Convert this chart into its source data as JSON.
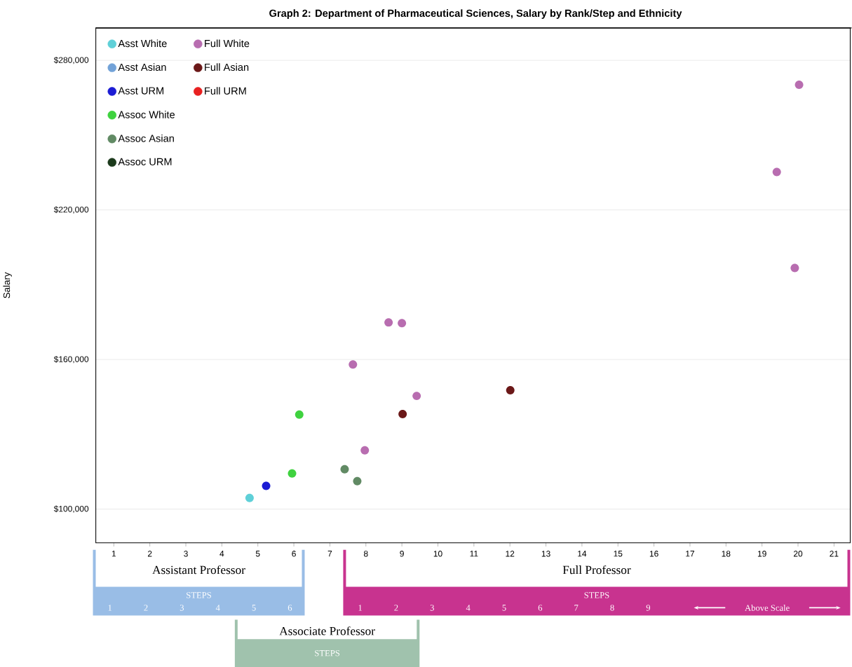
{
  "chart_data": {
    "type": "scatter",
    "title": "Graph 2: Department of Pharmaceutical Sciences, Salary by Rank/Step and Ethnicity",
    "ylabel": "Salary",
    "xlim": [
      0.5,
      21.45
    ],
    "ylim": [
      86500,
      293000
    ],
    "xticks": [
      1,
      2,
      3,
      4,
      5,
      6,
      7,
      8,
      9,
      10,
      11,
      12,
      13,
      14,
      15,
      16,
      17,
      18,
      19,
      20,
      21
    ],
    "yticks": [
      {
        "value": 100000,
        "label": "$100,000"
      },
      {
        "value": 160000,
        "label": "$160,000"
      },
      {
        "value": 220000,
        "label": "$220,000"
      },
      {
        "value": 280000,
        "label": "$280,000"
      }
    ],
    "grid": "y",
    "legend": "top left",
    "marker": "circle",
    "series": [
      {
        "name": "Asst White",
        "color": "#5fd0d8",
        "x": [
          4.77
        ],
        "values": [
          104500
        ]
      },
      {
        "name": "Asst Asian",
        "color": "#72a2d8"
      },
      {
        "name": "Asst URM",
        "color": "#1c1cd4",
        "x": [
          5.23
        ],
        "values": [
          109300
        ]
      },
      {
        "name": "Assoc White",
        "color": "#3fd23f",
        "x": [
          6.15,
          5.95
        ],
        "values": [
          137900,
          114300
        ]
      },
      {
        "name": "Assoc Asian",
        "color": "#618a64",
        "x": [
          7.41,
          7.76
        ],
        "values": [
          116000,
          111200
        ]
      },
      {
        "name": "Assoc URM",
        "color": "#1c3a1c"
      },
      {
        "name": "Full White",
        "color": "#b86db0",
        "x": [
          20.03,
          19.41,
          19.91,
          8.63,
          9.0,
          7.64,
          9.41,
          7.97
        ],
        "values": [
          270200,
          235200,
          196700,
          174900,
          174600,
          158000,
          145400,
          123600
        ]
      },
      {
        "name": "Full Asian",
        "color": "#6b1818",
        "x": [
          12.01,
          9.02
        ],
        "values": [
          147700,
          138100
        ]
      },
      {
        "name": "Full URM",
        "color": "#e82020"
      }
    ],
    "annotations": [
      "Assistant Professor",
      "STEPS",
      "1",
      "2",
      "3",
      "4",
      "5",
      "6",
      "Associate Professor",
      "STEPS",
      "Full Professor",
      "STEPS",
      "1",
      "2",
      "3",
      "4",
      "5",
      "6",
      "7",
      "8",
      "9",
      "Above Scale"
    ]
  }
}
